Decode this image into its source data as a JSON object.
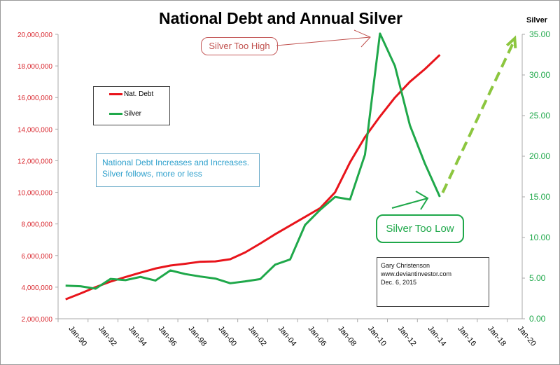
{
  "chart_data": {
    "type": "line",
    "title": "National Debt  and Annual Silver",
    "categories": [
      1990,
      1991,
      1992,
      1993,
      1994,
      1995,
      1996,
      1997,
      1998,
      1999,
      2000,
      2001,
      2002,
      2003,
      2004,
      2005,
      2006,
      2007,
      2008,
      2009,
      2010,
      2011,
      2012,
      2013,
      2014,
      2015,
      2016,
      2017,
      2018,
      2019,
      2020
    ],
    "x_tick_labels": [
      "Jan-90",
      "Jan-92",
      "Jan-94",
      "Jan-96",
      "Jan-98",
      "Jan-00",
      "Jan-02",
      "Jan-04",
      "Jan-06",
      "Jan-08",
      "Jan-10",
      "Jan-12",
      "Jan-14",
      "Jan-16",
      "Jan-18",
      "Jan-20"
    ],
    "left_axis": {
      "ylim": [
        2000000,
        20000000
      ],
      "ticks": [
        "2,000,000",
        "4,000,000",
        "6,000,000",
        "8,000,000",
        "10,000,000",
        "12,000,000",
        "14,000,000",
        "16,000,000",
        "18,000,000",
        "20,000,000"
      ],
      "color": "#d9272e"
    },
    "right_axis": {
      "label": "Silver",
      "ylim": [
        0,
        35
      ],
      "ticks": [
        "0.00",
        "5.00",
        "10.00",
        "15.00",
        "20.00",
        "25.00",
        "30.00",
        "35.00"
      ],
      "color": "#1fa84a"
    },
    "grid": false,
    "legend_position": "left",
    "series": [
      {
        "name": "Nat. Debt",
        "axis": "left",
        "color": "#e8141b",
        "x": [
          1990,
          1991,
          1992,
          1993,
          1994,
          1995,
          1996,
          1997,
          1998,
          1999,
          2000,
          2001,
          2002,
          2003,
          2004,
          2005,
          2006,
          2007,
          2008,
          2009,
          2010,
          2011,
          2012,
          2013,
          2014,
          2015
        ],
        "values": [
          3230000,
          3600000,
          4000000,
          4350000,
          4640000,
          4920000,
          5180000,
          5370000,
          5480000,
          5610000,
          5630000,
          5770000,
          6200000,
          6760000,
          7350000,
          7900000,
          8450000,
          9000000,
          10000000,
          11900000,
          13500000,
          14800000,
          16000000,
          17000000,
          17800000,
          18700000
        ]
      },
      {
        "name": "Silver",
        "axis": "right",
        "color": "#1fa84a",
        "x": [
          1990,
          1991,
          1992,
          1993,
          1994,
          1995,
          1996,
          1997,
          1998,
          1999,
          2000,
          2001,
          2002,
          2003,
          2004,
          2005,
          2006,
          2007,
          2008,
          2009,
          2010,
          2011,
          2012,
          2013,
          2014,
          2015
        ],
        "values": [
          4.07,
          4.0,
          3.7,
          4.9,
          4.75,
          5.15,
          4.7,
          5.95,
          5.5,
          5.2,
          4.95,
          4.37,
          4.6,
          4.88,
          6.66,
          7.3,
          11.55,
          13.4,
          14.99,
          14.67,
          20.2,
          35.1,
          31.1,
          23.8,
          19.1,
          15.0
        ]
      },
      {
        "axis": "right",
        "style": "dashed-arrow",
        "color": "#8cc63f",
        "x": [
          2015,
          2020
        ],
        "values": [
          15.0,
          34.5
        ]
      }
    ],
    "annotations": {
      "high": "Silver Too High",
      "low": "Silver Too Low",
      "note_line1": "National Debt Increases and Increases.",
      "note_line2": "Silver follows, more or less",
      "credit_name": "Gary Christenson",
      "credit_site": "www.deviantinvestor.com",
      "credit_date": "Dec. 6, 2015"
    }
  }
}
